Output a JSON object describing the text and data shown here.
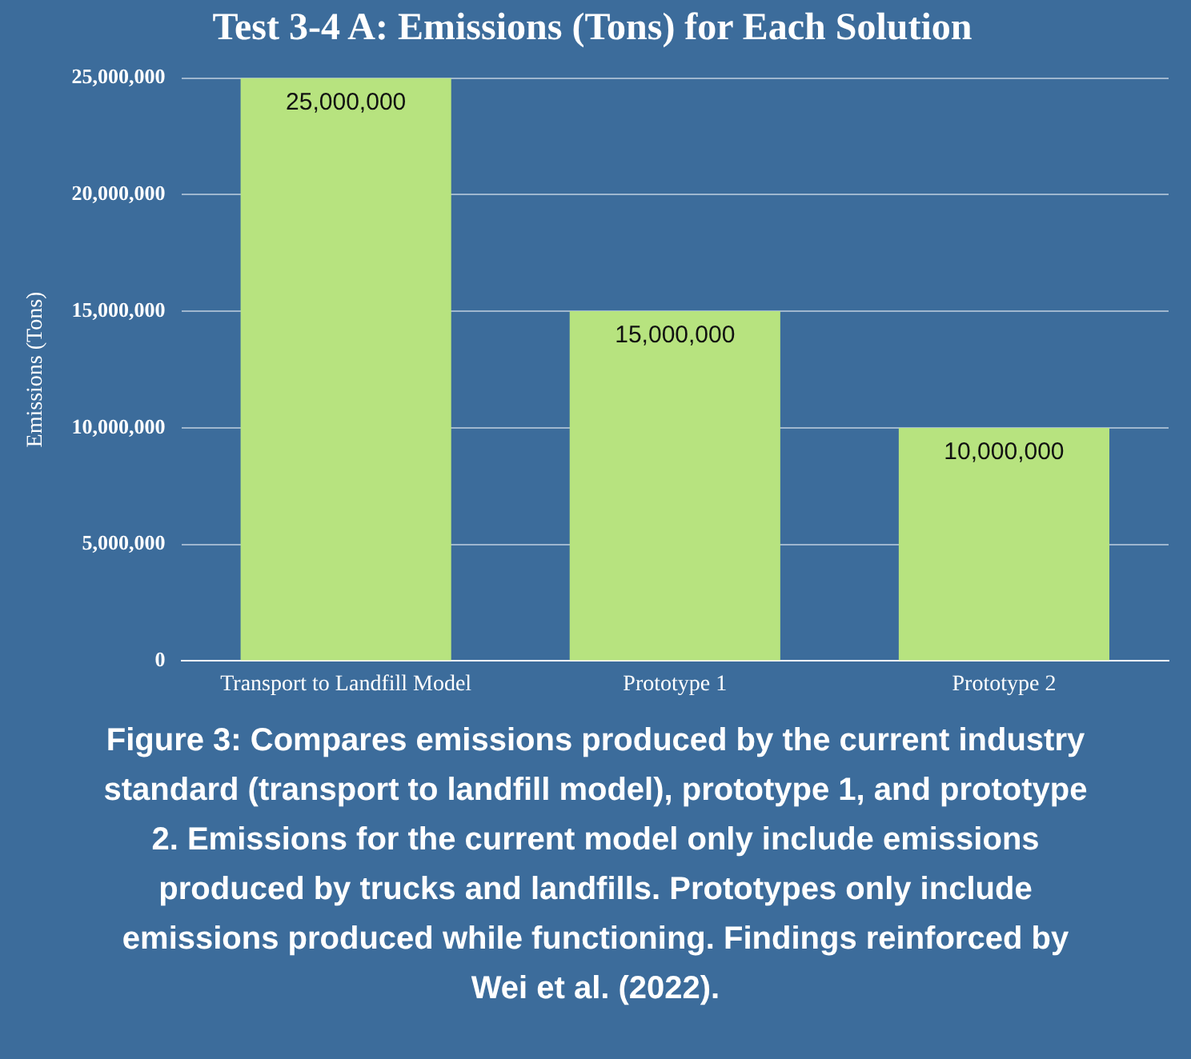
{
  "chart_data": {
    "type": "bar",
    "title": "Test 3-4 A: Emissions (Tons) for Each Solution",
    "ylabel": "Emissions (Tons)",
    "categories": [
      "Transport to Landfill Model",
      "Prototype 1",
      "Prototype 2"
    ],
    "values": [
      25000000,
      15000000,
      10000000
    ],
    "color": "#b7e37f",
    "value_labels": [
      "25,000,000",
      "15,000,000",
      "10,000,000"
    ],
    "ylim": [
      0,
      25000000
    ],
    "yticks": [
      {
        "value": 0,
        "label": "0"
      },
      {
        "value": 5000000,
        "label": "5,000,000"
      },
      {
        "value": 10000000,
        "label": "10,000,000"
      },
      {
        "value": 15000000,
        "label": "15,000,000"
      },
      {
        "value": 20000000,
        "label": "20,000,000"
      },
      {
        "value": 25000000,
        "label": "25,000,000"
      }
    ],
    "grid": "y",
    "legend": false,
    "annotations": [
      "Figure 3: Compares emissions produced by the current industry standard (transport to landfill model), prototype 1, and prototype 2. Emissions for the current model only include emissions produced by trucks and landfills. Prototypes only include emissions produced while functioning. Findings reinforced by Wei et al. (2022)."
    ]
  }
}
